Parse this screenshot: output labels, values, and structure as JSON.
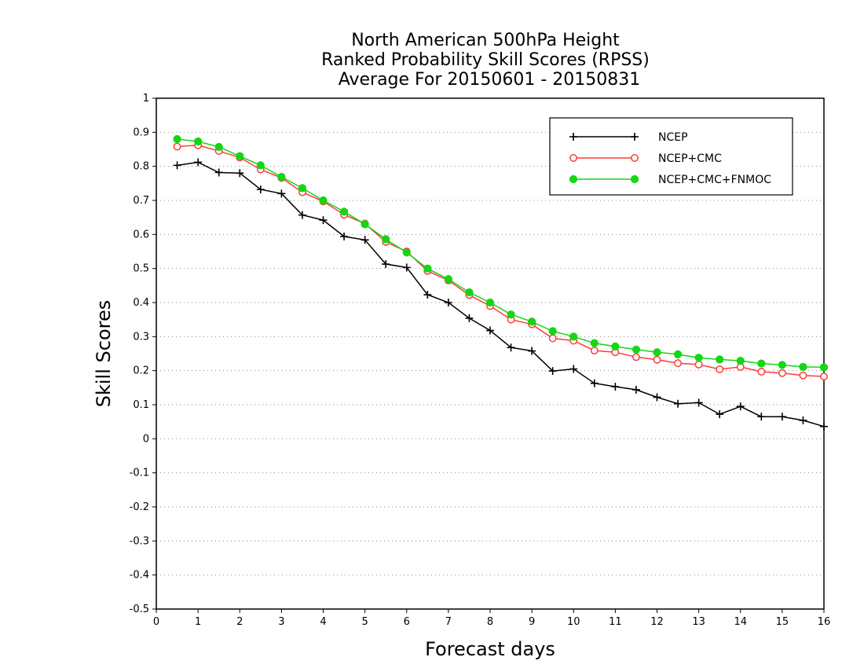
{
  "chart_data": {
    "type": "line",
    "title_lines": [
      "North American 500hPa Height",
      "Ranked Probability Skill Scores (RPSS)",
      "Average For 20150601 - 20150831"
    ],
    "xlabel": "Forecast days",
    "ylabel": "Skill Scores",
    "xlim": [
      0,
      16
    ],
    "ylim": [
      -0.5,
      1
    ],
    "xticks": [
      0,
      1,
      2,
      3,
      4,
      5,
      6,
      7,
      8,
      9,
      10,
      11,
      12,
      13,
      14,
      15,
      16
    ],
    "yticks": [
      -0.5,
      -0.4,
      -0.3,
      -0.2,
      -0.1,
      0,
      0.1,
      0.2,
      0.3,
      0.4,
      0.5,
      0.6,
      0.7,
      0.8,
      0.9,
      1
    ],
    "ytick_labels": [
      "-0.5",
      "-0.4",
      "-0.3",
      "-0.2",
      "-0.1",
      "0",
      "0.1",
      "0.2",
      "0.3",
      "0.4",
      "0.5",
      "0.6",
      "0.7",
      "0.8",
      "0.9",
      "1"
    ],
    "grid": "horizontal dotted",
    "legend_position": "top-right",
    "x": [
      0.5,
      1,
      1.5,
      2,
      2.5,
      3,
      3.5,
      4,
      4.5,
      5,
      5.5,
      6,
      6.5,
      7,
      7.5,
      8,
      8.5,
      9,
      9.5,
      10,
      10.5,
      11,
      11.5,
      12,
      12.5,
      13,
      13.5,
      14,
      14.5,
      15,
      15.5,
      16
    ],
    "series": [
      {
        "name": "NCEP",
        "color": "#000000",
        "marker": "plus",
        "values": [
          0.803,
          0.812,
          0.782,
          0.78,
          0.732,
          0.72,
          0.657,
          0.642,
          0.594,
          0.584,
          0.513,
          0.503,
          0.423,
          0.4,
          0.354,
          0.318,
          0.268,
          0.258,
          0.199,
          0.205,
          0.163,
          0.153,
          0.144,
          0.122,
          0.103,
          0.106,
          0.072,
          0.095,
          0.065,
          0.065,
          0.054,
          0.036
        ]
      },
      {
        "name": "NCEP+CMC",
        "color": "#ff3b3b",
        "marker": "open-circle",
        "values": [
          0.858,
          0.862,
          0.845,
          0.826,
          0.791,
          0.766,
          0.724,
          0.697,
          0.658,
          0.632,
          0.578,
          0.55,
          0.493,
          0.465,
          0.422,
          0.39,
          0.35,
          0.336,
          0.295,
          0.288,
          0.259,
          0.254,
          0.24,
          0.232,
          0.222,
          0.218,
          0.204,
          0.211,
          0.197,
          0.193,
          0.186,
          0.183
        ]
      },
      {
        "name": "NCEP+CMC+FNMOC",
        "color": "#14d614",
        "marker": "filled-circle",
        "values": [
          0.88,
          0.873,
          0.857,
          0.83,
          0.803,
          0.769,
          0.736,
          0.7,
          0.667,
          0.63,
          0.586,
          0.547,
          0.5,
          0.469,
          0.43,
          0.4,
          0.365,
          0.344,
          0.316,
          0.3,
          0.281,
          0.271,
          0.262,
          0.254,
          0.248,
          0.238,
          0.233,
          0.229,
          0.221,
          0.217,
          0.211,
          0.21
        ]
      }
    ]
  }
}
